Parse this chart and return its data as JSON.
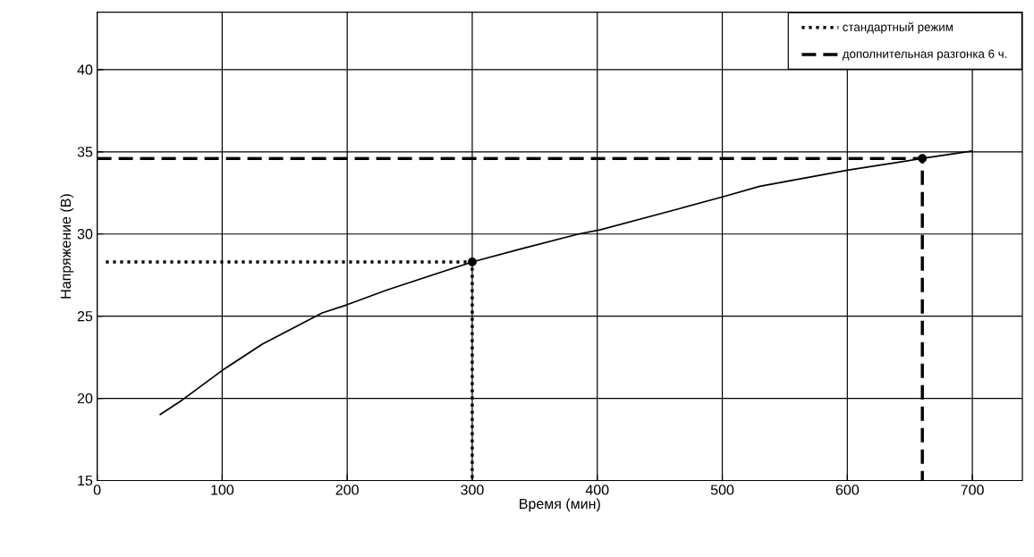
{
  "chart_data": {
    "type": "line",
    "xlabel": "Время (мин)",
    "ylabel": "Напряжение (В)",
    "xlim": [
      0,
      740
    ],
    "ylim": [
      15,
      43.5
    ],
    "xticks": [
      0,
      100,
      200,
      300,
      400,
      500,
      600,
      700
    ],
    "yticks": [
      15,
      20,
      25,
      30,
      35,
      40
    ],
    "grid": true,
    "legend": "top right",
    "series": [
      {
        "color": "#000000",
        "line_style": "solid",
        "x": [
          50,
          68,
          100,
          132,
          180,
          200,
          232,
          300,
          339,
          385,
          402,
          466,
          502,
          530,
          601,
          660,
          700
        ],
        "values": [
          19.0,
          19.9,
          21.7,
          23.3,
          25.2,
          25.7,
          26.6,
          28.3,
          29.1,
          30.0,
          30.25,
          31.55,
          32.3,
          32.9,
          33.9,
          34.6,
          35.05
        ]
      },
      {
        "name": "стандартный режим",
        "color": "#000000",
        "line_style": "dotted",
        "x": [
          7,
          300,
          300
        ],
        "values": [
          28.3,
          28.3,
          15
        ]
      },
      {
        "name": "дополнительная разгонка 6 ч.",
        "color": "#000000",
        "line_style": "dashed",
        "x": [
          0,
          660,
          660
        ],
        "values": [
          34.6,
          34.6,
          15
        ]
      },
      {
        "type": "scatter",
        "marker": "circle",
        "color": "#000000",
        "x": [
          300,
          660
        ],
        "values": [
          28.3,
          34.6
        ]
      }
    ]
  }
}
